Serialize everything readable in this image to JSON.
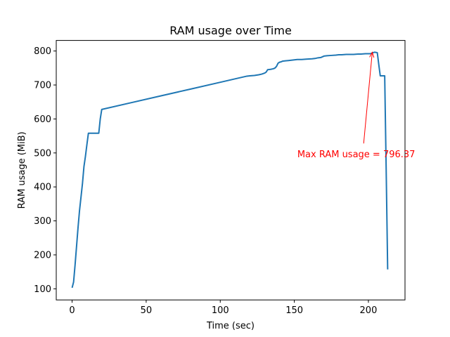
{
  "chart_data": {
    "type": "line",
    "title": "RAM usage over Time",
    "xlabel": "Time (sec)",
    "ylabel": "RAM usage (MiB)",
    "xlim": [
      -10.7,
      224.7
    ],
    "ylim": [
      67.3,
      831.1
    ],
    "xticks": [
      0,
      50,
      100,
      150,
      200
    ],
    "yticks": [
      100,
      200,
      300,
      400,
      500,
      600,
      700,
      800
    ],
    "grid": false,
    "line_color": "#1f77b4",
    "series": [
      {
        "x": [
          0,
          1,
          2,
          3,
          4,
          5,
          6,
          7,
          8,
          9,
          10,
          11,
          12,
          14,
          16,
          18,
          19,
          20,
          40,
          60,
          80,
          100,
          110,
          118,
          120,
          123,
          126,
          128,
          130,
          131,
          132,
          134,
          135,
          136,
          137,
          138,
          139,
          140,
          141,
          142,
          144,
          146,
          148,
          150,
          152,
          155,
          158,
          162,
          164,
          166,
          168,
          170,
          172,
          175,
          178,
          180,
          182,
          185,
          188,
          190,
          193,
          195,
          198,
          200,
          201,
          202,
          203,
          204,
          205,
          206,
          207,
          208,
          209,
          210,
          211,
          212,
          213
        ],
        "values": [
          103,
          120,
          170,
          225,
          280,
          330,
          370,
          410,
          460,
          490,
          525,
          558,
          558,
          558,
          558,
          558,
          600,
          628,
          648,
          668,
          688,
          708,
          718,
          726,
          727,
          728,
          730,
          732,
          735,
          738,
          745,
          746,
          747,
          748,
          750,
          755,
          764,
          767,
          768,
          770,
          771,
          772,
          773,
          774,
          775,
          775,
          776,
          777,
          778,
          780,
          781,
          785,
          786,
          787,
          788,
          789,
          789,
          790,
          790,
          790,
          791,
          791,
          792,
          792,
          792,
          793,
          795,
          796.37,
          796,
          795,
          760,
          727,
          727,
          727,
          727,
          450,
          157
        ]
      }
    ],
    "annotation": {
      "text": "Max RAM usage = 796.37",
      "point": [
        202.6,
        796.37
      ],
      "text_at": [
        152,
        497
      ],
      "arrow_tail": [
        196.8,
        528
      ],
      "color": "#ff0000"
    }
  }
}
